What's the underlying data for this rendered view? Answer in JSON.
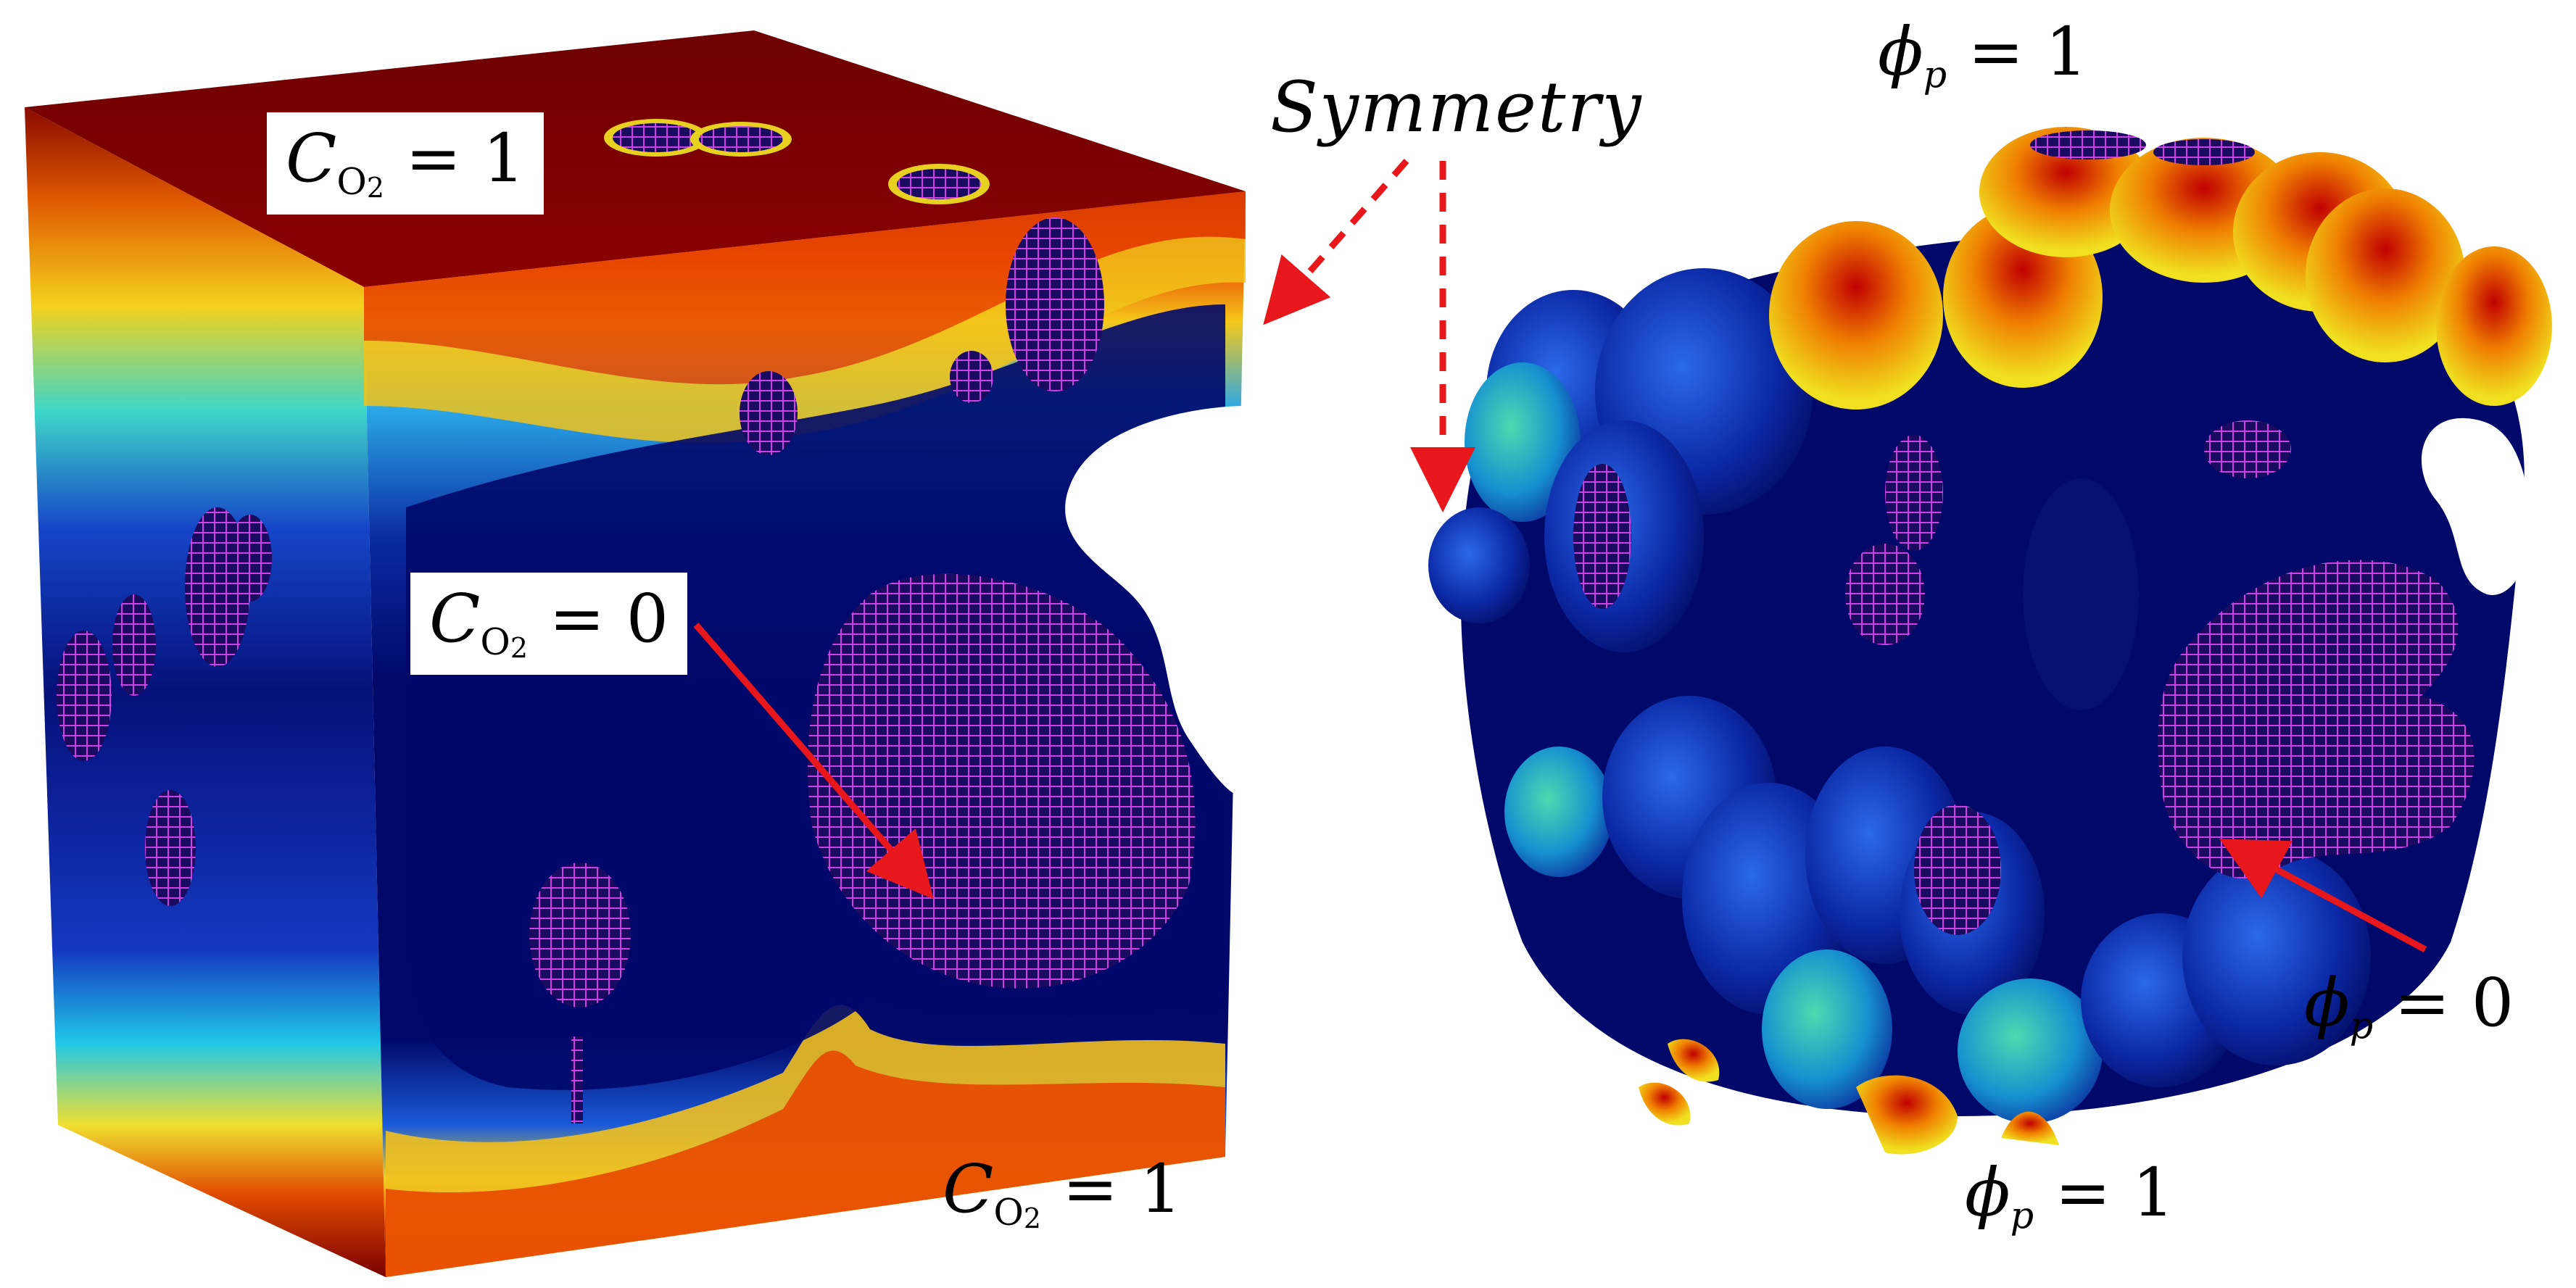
{
  "labels": {
    "co2_top": {
      "symbol": "C",
      "subscript": "O",
      "subsubscript": "2",
      "equals": "=",
      "value": "1"
    },
    "co2_mid": {
      "symbol": "C",
      "subscript": "O",
      "subsubscript": "2",
      "equals": "=",
      "value": "0"
    },
    "co2_bottom": {
      "symbol": "C",
      "subscript": "O",
      "subsubscript": "2",
      "equals": "=",
      "value": "1"
    },
    "phi_top": {
      "symbol": "ϕ",
      "subscript": "p",
      "equals": "=",
      "value": "1"
    },
    "phi_right": {
      "symbol": "ϕ",
      "subscript": "p",
      "equals": "=",
      "value": "0"
    },
    "phi_bottom": {
      "symbol": "ϕ",
      "subscript": "p",
      "equals": "=",
      "value": "1"
    },
    "symmetry": "Symmetry"
  },
  "colors": {
    "arrow_red": "#e8171b",
    "field_high": "#7a0000",
    "field_mid": "#f0e020",
    "field_low": "#000a6e",
    "pore_outline": "#d040e8",
    "background": "#ffffff"
  }
}
